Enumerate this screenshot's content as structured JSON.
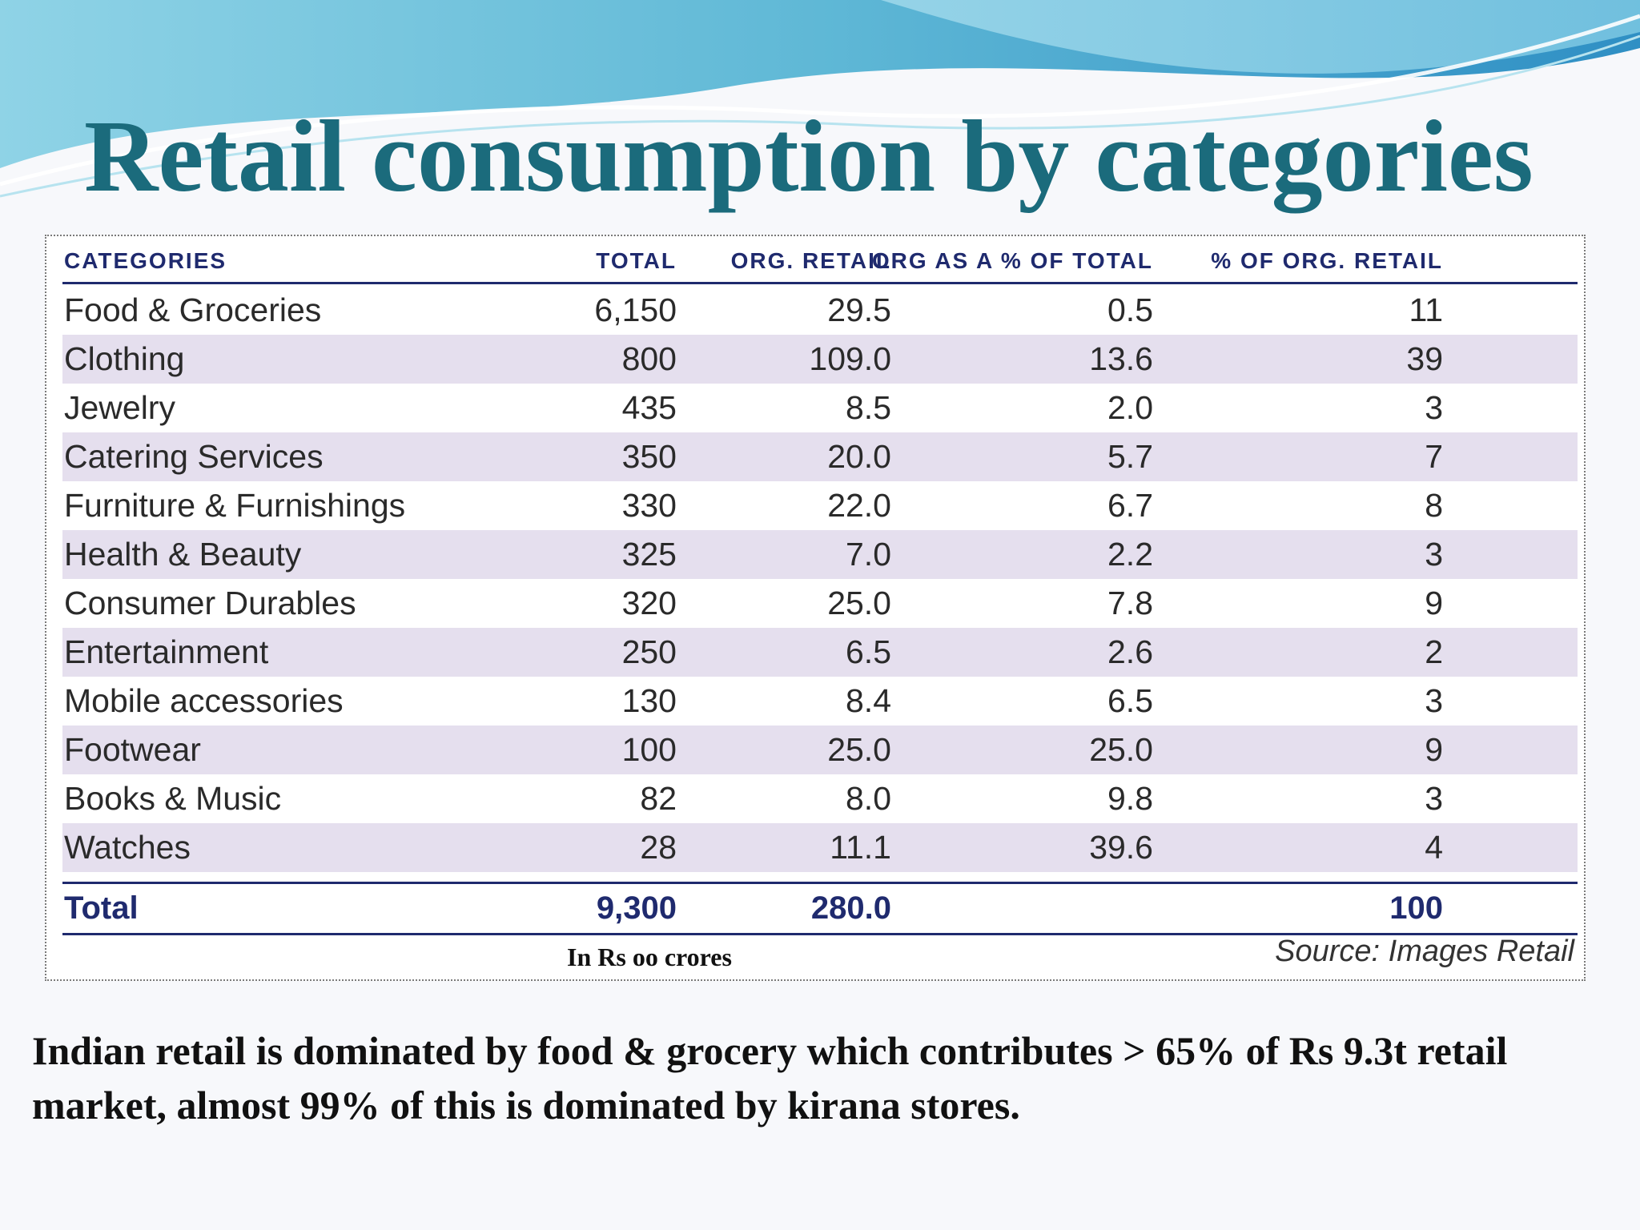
{
  "slide": {
    "title": "Retail consumption by categories",
    "note": "In Rs oo crores",
    "source": "Source: Images Retail",
    "summary": "Indian retail is dominated by  food & grocery which contributes > 65% of Rs 9.3t retail market, almost 99% of this is dominated by kirana stores."
  },
  "table": {
    "headers": [
      "CATEGORIES",
      "TOTAL",
      "ORG. RETAIL",
      "ORG AS A % OF TOTAL",
      "% OF ORG. RETAIL"
    ],
    "rows": [
      [
        "Food & Groceries",
        "6,150",
        "29.5",
        "0.5",
        "11"
      ],
      [
        "Clothing",
        "800",
        "109.0",
        "13.6",
        "39"
      ],
      [
        "Jewelry",
        "435",
        "8.5",
        "2.0",
        "3"
      ],
      [
        "Catering Services",
        "350",
        "20.0",
        "5.7",
        "7"
      ],
      [
        "Furniture & Furnishings",
        "330",
        "22.0",
        "6.7",
        "8"
      ],
      [
        "Health & Beauty",
        "325",
        "7.0",
        "2.2",
        "3"
      ],
      [
        "Consumer Durables",
        "320",
        "25.0",
        "7.8",
        "9"
      ],
      [
        "Entertainment",
        "250",
        "6.5",
        "2.6",
        "2"
      ],
      [
        "Mobile accessories",
        "130",
        "8.4",
        "6.5",
        "3"
      ],
      [
        "Footwear",
        "100",
        "25.0",
        "25.0",
        "9"
      ],
      [
        "Books & Music",
        "82",
        "8.0",
        "9.8",
        "3"
      ],
      [
        "Watches",
        "28",
        "11.1",
        "39.6",
        "4"
      ]
    ],
    "total": [
      "Total",
      "9,300",
      "280.0",
      "",
      "100"
    ]
  },
  "colors": {
    "title": "#1b6b7c",
    "header_text": "#1f2a6e",
    "row_shade": "#e5dfee"
  }
}
